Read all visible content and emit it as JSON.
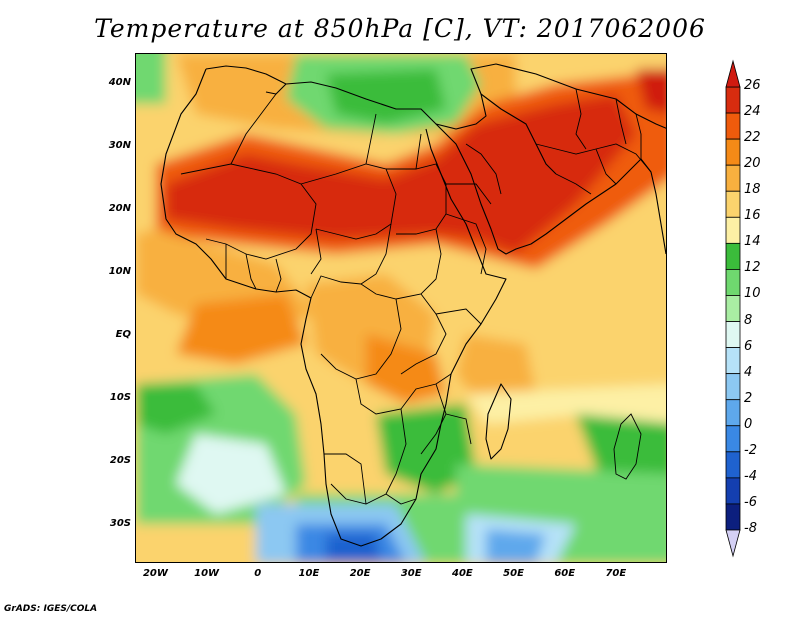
{
  "title": "Temperature at 850hPa [C], VT: 2017062006",
  "credit": "GrADS: IGES/COLA",
  "map": {
    "lat_range": [
      -36,
      45
    ],
    "lon_range": [
      -24,
      80
    ],
    "lat_ticks": [
      {
        "value": 40,
        "label": "40N"
      },
      {
        "value": 30,
        "label": "30N"
      },
      {
        "value": 20,
        "label": "20N"
      },
      {
        "value": 10,
        "label": "10N"
      },
      {
        "value": 0,
        "label": "EQ"
      },
      {
        "value": -10,
        "label": "10S"
      },
      {
        "value": -20,
        "label": "20S"
      },
      {
        "value": -30,
        "label": "30S"
      }
    ],
    "lon_ticks": [
      {
        "value": -20,
        "label": "20W"
      },
      {
        "value": -10,
        "label": "10W"
      },
      {
        "value": 0,
        "label": "0"
      },
      {
        "value": 10,
        "label": "10E"
      },
      {
        "value": 20,
        "label": "20E"
      },
      {
        "value": 30,
        "label": "30E"
      },
      {
        "value": 40,
        "label": "40E"
      },
      {
        "value": 50,
        "label": "50E"
      },
      {
        "value": 60,
        "label": "60E"
      },
      {
        "value": 70,
        "label": "70E"
      }
    ]
  },
  "colorbar": {
    "levels": [
      {
        "label": "26",
        "color": "#a50f00"
      },
      {
        "label": "24",
        "color": "#d72c0f"
      },
      {
        "label": "22",
        "color": "#ef5b0c"
      },
      {
        "label": "20",
        "color": "#f58a17"
      },
      {
        "label": "18",
        "color": "#f8b03f"
      },
      {
        "label": "16",
        "color": "#fbd36d"
      },
      {
        "label": "14",
        "color": "#fdf0a5"
      },
      {
        "label": "12",
        "color": "#3bbc3b"
      },
      {
        "label": "10",
        "color": "#6fd86f"
      },
      {
        "label": "8",
        "color": "#a9eda3"
      },
      {
        "label": "6",
        "color": "#dff8f2"
      },
      {
        "label": "4",
        "color": "#b6e2f8"
      },
      {
        "label": "2",
        "color": "#8cc8f2"
      },
      {
        "label": "0",
        "color": "#5ea8ec"
      },
      {
        "label": "-2",
        "color": "#3a88e4"
      },
      {
        "label": "-4",
        "color": "#1f62cf"
      },
      {
        "label": "-6",
        "color": "#143fb0"
      },
      {
        "label": "-8",
        "color": "#0c1f7e"
      }
    ],
    "under_color": "#d4d0f5",
    "over_color": "#d01a10"
  }
}
